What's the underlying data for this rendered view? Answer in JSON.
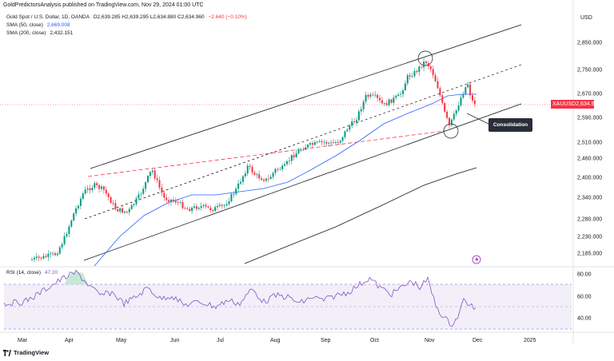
{
  "header": "GoldPredictorsAnalysis published on TradingView.com, Nov 29, 2024 01:00 UTC",
  "instrument": {
    "name": "Gold Spot / U.S. Dollar, 1D, OANDA",
    "ohlc": "O2,639.285 H2,639.295 L2,634.880 C2,634.960",
    "change": "−2.640 (−0.10%)"
  },
  "sma50": {
    "label": "SMA (50, close)",
    "value": "2,669.008",
    "color": "#2962ff"
  },
  "sma200": {
    "label": "SMA (200, close)",
    "value": "2,432.151",
    "color": "#131722"
  },
  "price_axis": {
    "currency": "USD",
    "ticks": [
      "2,850.000",
      "2,750.000",
      "2,670.000",
      "2,590.000",
      "2,510.000",
      "2,460.000",
      "2,400.000",
      "2,340.000",
      "2,280.000",
      "2,230.000",
      "2,185.000"
    ]
  },
  "price_tag": {
    "symbol": "XAUUSD",
    "value": "2,634.960",
    "color": "#f23645"
  },
  "annotation": "Consolidation",
  "rsi": {
    "label": "RSI (14, close)",
    "value": "47.20",
    "ticks": [
      "80.00",
      "60.00",
      "40.00"
    ],
    "color": "#7e57c2"
  },
  "time_axis": [
    "Mar",
    "Apr",
    "May",
    "Jun",
    "Jul",
    "Aug",
    "Sep",
    "Oct",
    "Nov",
    "Dec",
    "2025"
  ],
  "footer": "TradingView",
  "colors": {
    "up": "#089981",
    "down": "#f23645",
    "channel": "#131722",
    "support": "#f23645"
  }
}
